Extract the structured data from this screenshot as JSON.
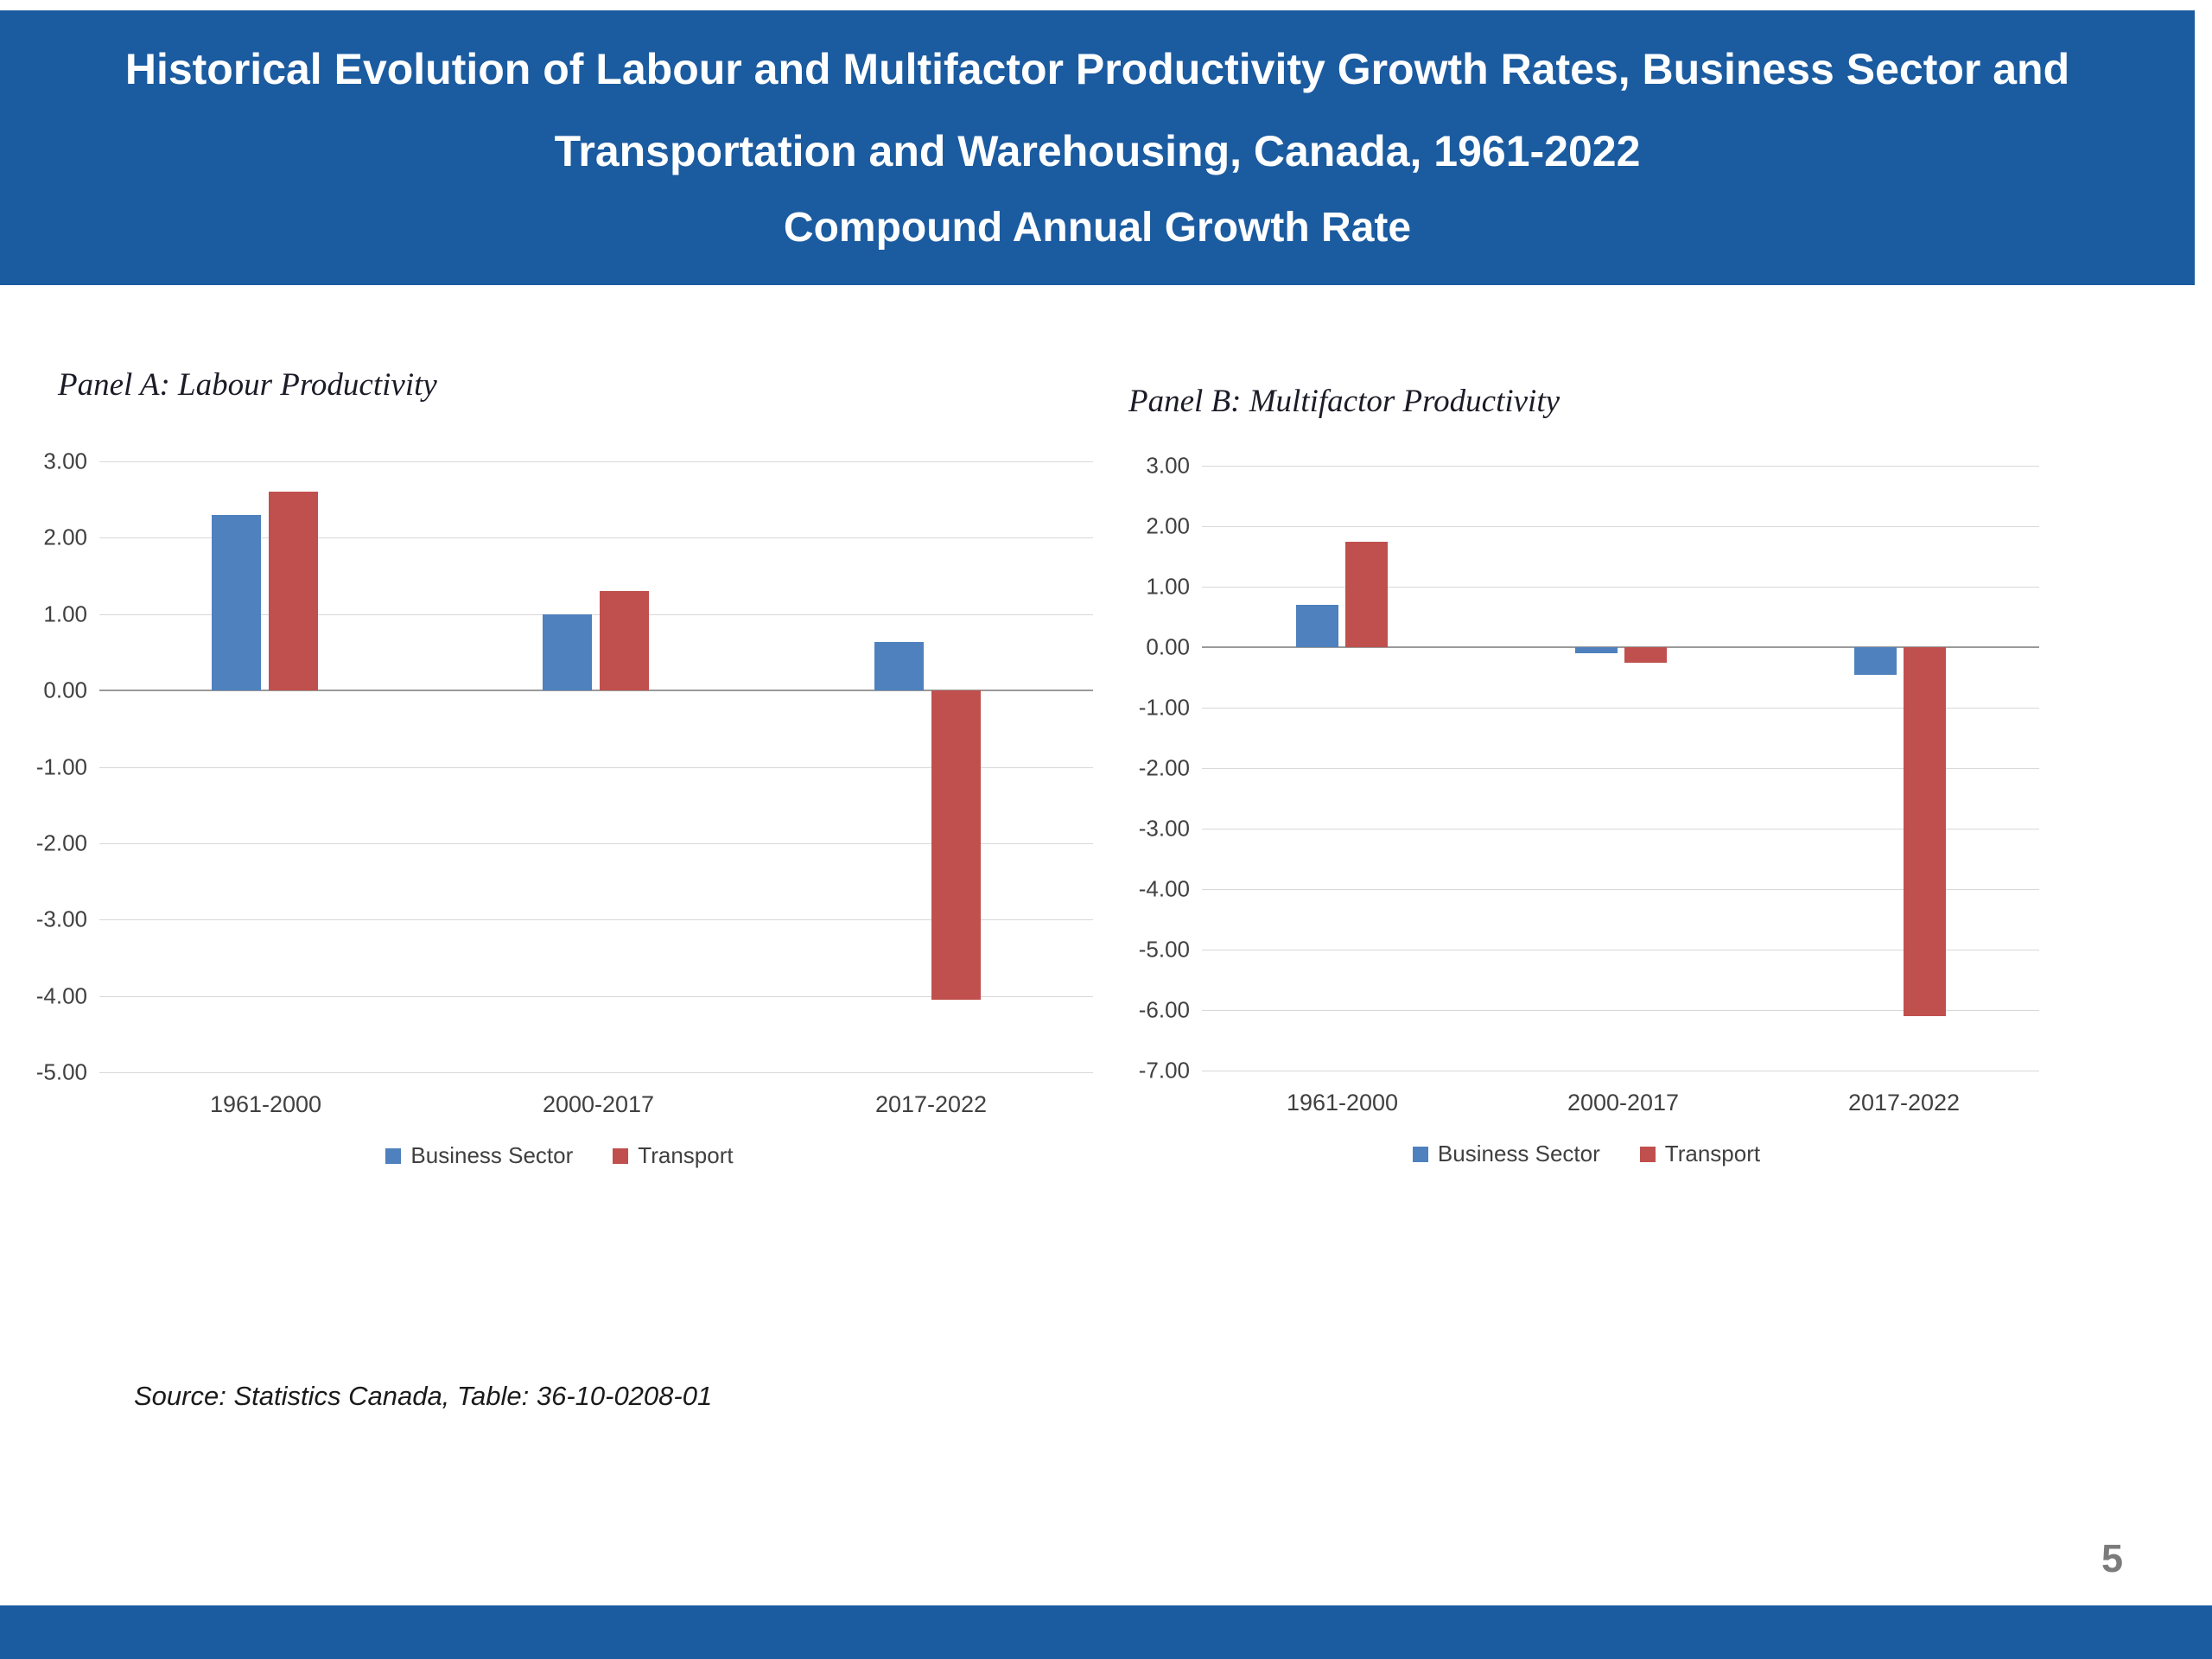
{
  "header": {
    "title_lines": [
      "Historical Evolution of Labour and Multifactor Productivity Growth Rates, Business Sector and",
      "Transportation and Warehousing, Canada, 1961-2022",
      "Compound Annual Growth Rate"
    ]
  },
  "source_note": "Source: Statistics Canada, Table: 36-10-0208-01",
  "page_number": "5",
  "colors": {
    "header_bg": "#1b5ba0",
    "footer_bg": "#1b5ba0",
    "business_sector": "#4e81bd",
    "transport": "#c0504d",
    "gridline": "#d8d8d8",
    "zero_axis": "#9a9a9a",
    "tick_text": "#404040"
  },
  "chart_data": [
    {
      "type": "bar",
      "panel_title": "Panel A: Labour Productivity",
      "categories": [
        "1961-2000",
        "2000-2017",
        "2017-2022"
      ],
      "series": [
        {
          "name": "Business Sector",
          "color": "#4e81bd",
          "values": [
            2.3,
            1.0,
            0.63
          ]
        },
        {
          "name": "Transport",
          "color": "#c0504d",
          "values": [
            2.6,
            1.3,
            -4.05
          ]
        }
      ],
      "ylim": [
        -5,
        3
      ],
      "ytick_step": 1,
      "ytick_format_decimals": 2,
      "grid": true,
      "legend_position": "bottom"
    },
    {
      "type": "bar",
      "panel_title": "Panel B: Multifactor Productivity",
      "categories": [
        "1961-2000",
        "2000-2017",
        "2017-2022"
      ],
      "series": [
        {
          "name": "Business Sector",
          "color": "#4e81bd",
          "values": [
            0.7,
            -0.1,
            -0.45
          ]
        },
        {
          "name": "Transport",
          "color": "#c0504d",
          "values": [
            1.75,
            -0.25,
            -6.1
          ]
        }
      ],
      "ylim": [
        -7,
        3
      ],
      "ytick_step": 1,
      "ytick_format_decimals": 2,
      "grid": true,
      "legend_position": "bottom"
    }
  ]
}
